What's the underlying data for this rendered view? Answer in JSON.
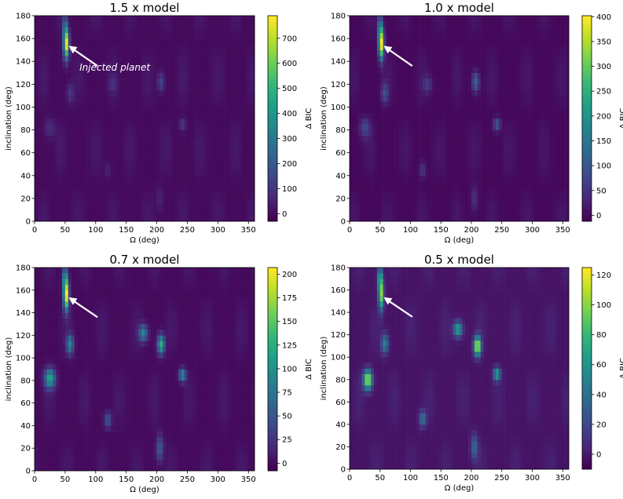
{
  "chart_data": [
    {
      "type": "heatmap",
      "title": "1.5 x model",
      "xlabel": "Ω (deg)",
      "ylabel": "inclination (deg)",
      "colorbar_label": "Δ BIC",
      "xlim": [
        0,
        360
      ],
      "ylim": [
        0,
        180
      ],
      "xticks": [
        0,
        50,
        100,
        150,
        200,
        250,
        300,
        350
      ],
      "yticks": [
        0,
        20,
        40,
        60,
        80,
        100,
        120,
        140,
        160,
        180
      ],
      "colorbar_range": [
        -30,
        790
      ],
      "colorbar_ticks": [
        0,
        100,
        200,
        300,
        400,
        500,
        600,
        700
      ],
      "annotation": {
        "text": "Injected planet",
        "points_to": [
          52,
          155
        ]
      },
      "blobs": [
        {
          "x": 52,
          "y": 155,
          "sx": 3,
          "sy": 9,
          "v": 760
        },
        {
          "x": 50,
          "y": 170,
          "sx": 3,
          "sy": 8,
          "v": 220
        },
        {
          "x": 58,
          "y": 112,
          "sx": 4,
          "sy": 6,
          "v": 110
        },
        {
          "x": 207,
          "y": 122,
          "sx": 4,
          "sy": 6,
          "v": 150
        },
        {
          "x": 242,
          "y": 85,
          "sx": 4,
          "sy": 4,
          "v": 120
        },
        {
          "x": 25,
          "y": 82,
          "sx": 6,
          "sy": 6,
          "v": 90
        },
        {
          "x": 128,
          "y": 120,
          "sx": 5,
          "sy": 5,
          "v": 70
        },
        {
          "x": 120,
          "y": 45,
          "sx": 4,
          "sy": 5,
          "v": 60
        },
        {
          "x": 205,
          "y": 20,
          "sx": 4,
          "sy": 8,
          "v": 60
        }
      ]
    },
    {
      "type": "heatmap",
      "title": "1.0 x model",
      "xlabel": "Ω (deg)",
      "ylabel": "inclination (deg)",
      "colorbar_label": "Δ BIC",
      "xlim": [
        0,
        360
      ],
      "ylim": [
        0,
        180
      ],
      "xticks": [
        0,
        50,
        100,
        150,
        200,
        250,
        300,
        350
      ],
      "yticks": [
        0,
        20,
        40,
        60,
        80,
        100,
        120,
        140,
        160,
        180
      ],
      "colorbar_range": [
        -12,
        402
      ],
      "colorbar_ticks": [
        0,
        50,
        100,
        150,
        200,
        250,
        300,
        350,
        400
      ],
      "annotation": {
        "text": "",
        "points_to": [
          52,
          155
        ]
      },
      "blobs": [
        {
          "x": 52,
          "y": 155,
          "sx": 3,
          "sy": 9,
          "v": 390
        },
        {
          "x": 50,
          "y": 170,
          "sx": 3,
          "sy": 8,
          "v": 150
        },
        {
          "x": 58,
          "y": 112,
          "sx": 4,
          "sy": 6,
          "v": 90
        },
        {
          "x": 207,
          "y": 122,
          "sx": 4,
          "sy": 6,
          "v": 130
        },
        {
          "x": 242,
          "y": 85,
          "sx": 4,
          "sy": 4,
          "v": 110
        },
        {
          "x": 25,
          "y": 82,
          "sx": 6,
          "sy": 6,
          "v": 80
        },
        {
          "x": 128,
          "y": 120,
          "sx": 5,
          "sy": 5,
          "v": 60
        },
        {
          "x": 120,
          "y": 45,
          "sx": 4,
          "sy": 5,
          "v": 55
        },
        {
          "x": 205,
          "y": 20,
          "sx": 4,
          "sy": 8,
          "v": 50
        }
      ]
    },
    {
      "type": "heatmap",
      "title": "0.7 x model",
      "xlabel": "Ω (deg)",
      "ylabel": "inclination (deg)",
      "colorbar_label": "Δ BIC",
      "xlim": [
        0,
        360
      ],
      "ylim": [
        0,
        180
      ],
      "xticks": [
        0,
        50,
        100,
        150,
        200,
        250,
        300,
        350
      ],
      "yticks": [
        0,
        20,
        40,
        60,
        80,
        100,
        120,
        140,
        160,
        180
      ],
      "colorbar_range": [
        -8,
        207
      ],
      "colorbar_ticks": [
        0,
        25,
        50,
        75,
        100,
        125,
        150,
        175,
        200
      ],
      "annotation": {
        "text": "",
        "points_to": [
          52,
          155
        ]
      },
      "blobs": [
        {
          "x": 52,
          "y": 155,
          "sx": 3,
          "sy": 9,
          "v": 200
        },
        {
          "x": 50,
          "y": 170,
          "sx": 3,
          "sy": 8,
          "v": 100
        },
        {
          "x": 58,
          "y": 112,
          "sx": 4,
          "sy": 6,
          "v": 90
        },
        {
          "x": 207,
          "y": 112,
          "sx": 4,
          "sy": 6,
          "v": 130
        },
        {
          "x": 242,
          "y": 85,
          "sx": 4,
          "sy": 4,
          "v": 100
        },
        {
          "x": 25,
          "y": 82,
          "sx": 6,
          "sy": 6,
          "v": 120
        },
        {
          "x": 178,
          "y": 122,
          "sx": 5,
          "sy": 5,
          "v": 90
        },
        {
          "x": 120,
          "y": 45,
          "sx": 4,
          "sy": 5,
          "v": 55
        },
        {
          "x": 205,
          "y": 20,
          "sx": 4,
          "sy": 8,
          "v": 60
        }
      ]
    },
    {
      "type": "heatmap",
      "title": "0.5 x model",
      "xlabel": "Ω (deg)",
      "ylabel": "inclination (deg)",
      "colorbar_label": "Δ BIC",
      "xlim": [
        0,
        360
      ],
      "ylim": [
        0,
        180
      ],
      "xticks": [
        0,
        50,
        100,
        150,
        200,
        250,
        300,
        350
      ],
      "yticks": [
        0,
        20,
        40,
        60,
        80,
        100,
        120,
        140,
        160,
        180
      ],
      "colorbar_range": [
        -10,
        125
      ],
      "colorbar_ticks": [
        0,
        20,
        40,
        60,
        80,
        100,
        120
      ],
      "annotation": {
        "text": "",
        "points_to": [
          52,
          155
        ]
      },
      "blobs": [
        {
          "x": 52,
          "y": 155,
          "sx": 3,
          "sy": 9,
          "v": 95
        },
        {
          "x": 50,
          "y": 170,
          "sx": 3,
          "sy": 8,
          "v": 70
        },
        {
          "x": 58,
          "y": 112,
          "sx": 4,
          "sy": 6,
          "v": 55
        },
        {
          "x": 210,
          "y": 110,
          "sx": 4,
          "sy": 6,
          "v": 120
        },
        {
          "x": 242,
          "y": 85,
          "sx": 4,
          "sy": 4,
          "v": 70
        },
        {
          "x": 30,
          "y": 80,
          "sx": 5,
          "sy": 6,
          "v": 115
        },
        {
          "x": 178,
          "y": 125,
          "sx": 5,
          "sy": 5,
          "v": 70
        },
        {
          "x": 120,
          "y": 45,
          "sx": 4,
          "sy": 5,
          "v": 45
        },
        {
          "x": 205,
          "y": 20,
          "sx": 4,
          "sy": 8,
          "v": 40
        }
      ]
    }
  ],
  "colors": {
    "viridis": [
      "#440154",
      "#482878",
      "#3e4989",
      "#31688e",
      "#26828e",
      "#1f9e89",
      "#35b779",
      "#6ece58",
      "#b5de2b",
      "#fde725"
    ],
    "background": "#ffffff",
    "arrow": "#ffffff"
  }
}
